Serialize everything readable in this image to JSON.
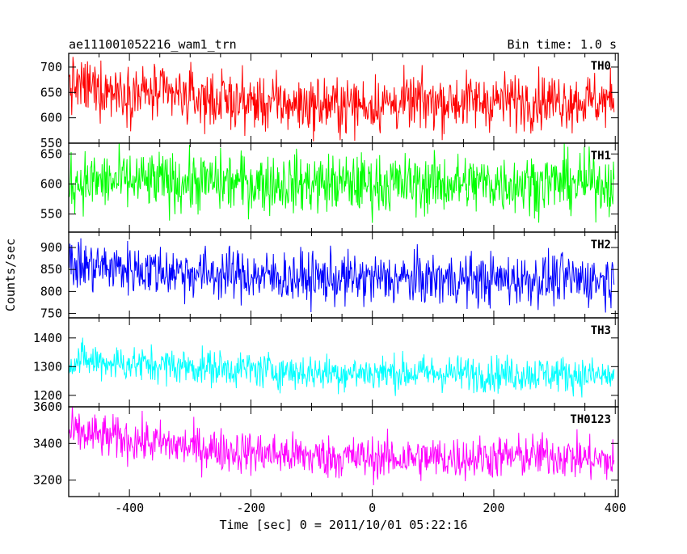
{
  "chart_data": {
    "type": "line",
    "title_left": "ae111001052216_wam1_trn",
    "title_right": "Bin time: 1.0 s",
    "xlabel": "Time [sec] 0 = 2011/10/01 05:22:16",
    "ylabel": "Counts/sec",
    "xlim": [
      -500,
      405
    ],
    "x_ticks": [
      -400,
      -200,
      0,
      200,
      400
    ],
    "grid": false,
    "x_start": -499,
    "x_end": 398,
    "bin_time_s": 1.0,
    "series": [
      {
        "name": "TH0",
        "color": "#ff0000",
        "ylim": [
          550,
          727
        ],
        "y_ticks": [
          550,
          600,
          650,
          700
        ],
        "noise_sd": 28,
        "trend": [
          [
            -499,
            663
          ],
          [
            -400,
            652
          ],
          [
            -300,
            640
          ],
          [
            -200,
            630
          ],
          [
            -100,
            625
          ],
          [
            0,
            626
          ],
          [
            100,
            632
          ],
          [
            200,
            633
          ],
          [
            300,
            635
          ],
          [
            398,
            633
          ]
        ]
      },
      {
        "name": "TH1",
        "color": "#00ff00",
        "ylim": [
          520,
          668
        ],
        "y_ticks": [
          550,
          600,
          650
        ],
        "noise_sd": 25,
        "trend": [
          [
            -499,
            604
          ],
          [
            -400,
            604
          ],
          [
            -300,
            603
          ],
          [
            -200,
            602
          ],
          [
            -100,
            601
          ],
          [
            0,
            600
          ],
          [
            100,
            600
          ],
          [
            200,
            601
          ],
          [
            300,
            602
          ],
          [
            398,
            602
          ]
        ]
      },
      {
        "name": "TH2",
        "color": "#0000ff",
        "ylim": [
          740,
          935
        ],
        "y_ticks": [
          750,
          800,
          850,
          900
        ],
        "noise_sd": 30,
        "trend": [
          [
            -499,
            860
          ],
          [
            -400,
            852
          ],
          [
            -300,
            843
          ],
          [
            -200,
            836
          ],
          [
            -100,
            830
          ],
          [
            0,
            828
          ],
          [
            100,
            828
          ],
          [
            200,
            826
          ],
          [
            300,
            829
          ],
          [
            398,
            826
          ]
        ]
      },
      {
        "name": "TH3",
        "color": "#00ffff",
        "ylim": [
          1160,
          1470
        ],
        "y_ticks": [
          1200,
          1300,
          1400
        ],
        "noise_sd": 32,
        "trend": [
          [
            -499,
            1325
          ],
          [
            -400,
            1310
          ],
          [
            -300,
            1300
          ],
          [
            -200,
            1290
          ],
          [
            -100,
            1280
          ],
          [
            0,
            1278
          ],
          [
            100,
            1278
          ],
          [
            200,
            1275
          ],
          [
            300,
            1275
          ],
          [
            398,
            1265
          ]
        ]
      },
      {
        "name": "TH0123",
        "color": "#ff00ff",
        "ylim": [
          3110,
          3600
        ],
        "y_ticks": [
          3200,
          3400,
          3600
        ],
        "noise_sd": 60,
        "trend": [
          [
            -499,
            3460
          ],
          [
            -400,
            3420
          ],
          [
            -300,
            3380
          ],
          [
            -200,
            3350
          ],
          [
            -100,
            3330
          ],
          [
            0,
            3320
          ],
          [
            100,
            3320
          ],
          [
            200,
            3325
          ],
          [
            300,
            3335
          ],
          [
            398,
            3300
          ]
        ]
      }
    ]
  }
}
